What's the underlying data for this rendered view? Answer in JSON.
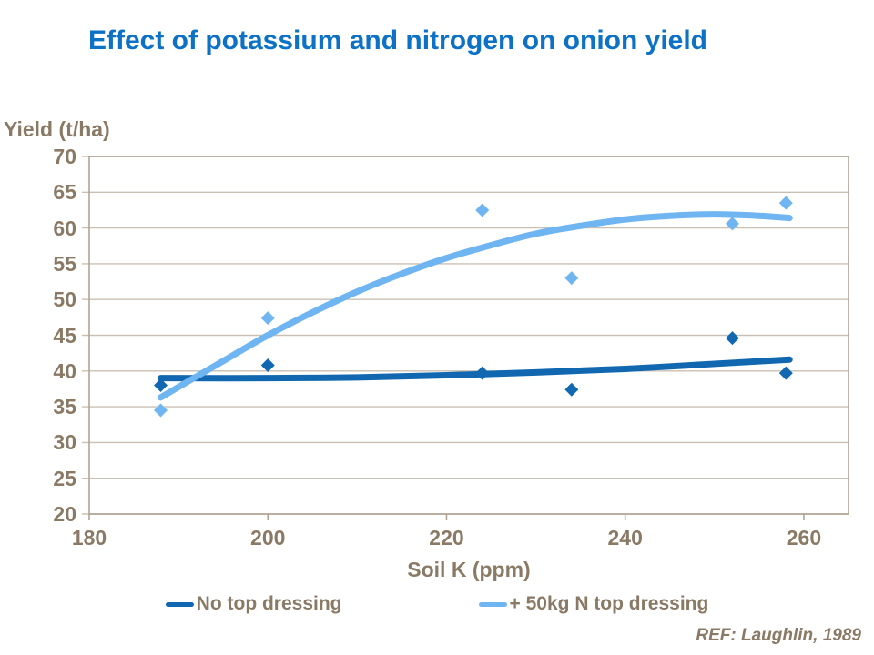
{
  "ref_note": "REF: Laughlin, 1989",
  "colors": {
    "title": "#0d72c5",
    "axis_text": "#8a7a65",
    "grid": "#c9c0b3",
    "border": "#b0a494",
    "series1": "#1168b1",
    "series2": "#6fb5f1"
  },
  "chart_data": {
    "type": "scatter",
    "title": "Effect of potassium and nitrogen on onion yield",
    "xlabel": "Soil K (ppm)",
    "ylabel": "Yield (t/ha)",
    "xlim": [
      180,
      265
    ],
    "ylim": [
      20,
      70
    ],
    "x_ticks": [
      180,
      200,
      220,
      240,
      260
    ],
    "y_ticks": [
      20,
      25,
      30,
      35,
      40,
      45,
      50,
      55,
      60,
      65,
      70
    ],
    "grid": "horizontal gridlines every 5 t/ha",
    "legend_position": "bottom",
    "marker": "diamond",
    "series": [
      {
        "name": "No top dressing",
        "color": "#1168b1",
        "points": [
          [
            188,
            38.0
          ],
          [
            200,
            40.8
          ],
          [
            224,
            39.7
          ],
          [
            234,
            37.4
          ],
          [
            252,
            44.6
          ],
          [
            258,
            39.7
          ]
        ],
        "trend": [
          [
            188,
            39.0
          ],
          [
            200,
            39.0
          ],
          [
            210,
            39.1
          ],
          [
            220,
            39.4
          ],
          [
            230,
            39.8
          ],
          [
            240,
            40.3
          ],
          [
            250,
            41.0
          ],
          [
            258.4,
            41.6
          ]
        ]
      },
      {
        "name": "+ 50kg N top dressing",
        "color": "#6fb5f1",
        "points": [
          [
            188,
            34.5
          ],
          [
            200,
            47.4
          ],
          [
            224,
            62.5
          ],
          [
            234,
            53.0
          ],
          [
            252,
            60.6
          ],
          [
            258,
            63.5
          ]
        ],
        "trend": [
          [
            188,
            36.3
          ],
          [
            195,
            41.4
          ],
          [
            200,
            45.0
          ],
          [
            205,
            48.2
          ],
          [
            210,
            51.1
          ],
          [
            215,
            53.6
          ],
          [
            220,
            55.8
          ],
          [
            225,
            57.6
          ],
          [
            230,
            59.2
          ],
          [
            235,
            60.3
          ],
          [
            240,
            61.2
          ],
          [
            245,
            61.7
          ],
          [
            250,
            61.9
          ],
          [
            255,
            61.7
          ],
          [
            258.4,
            61.4
          ]
        ]
      }
    ]
  }
}
